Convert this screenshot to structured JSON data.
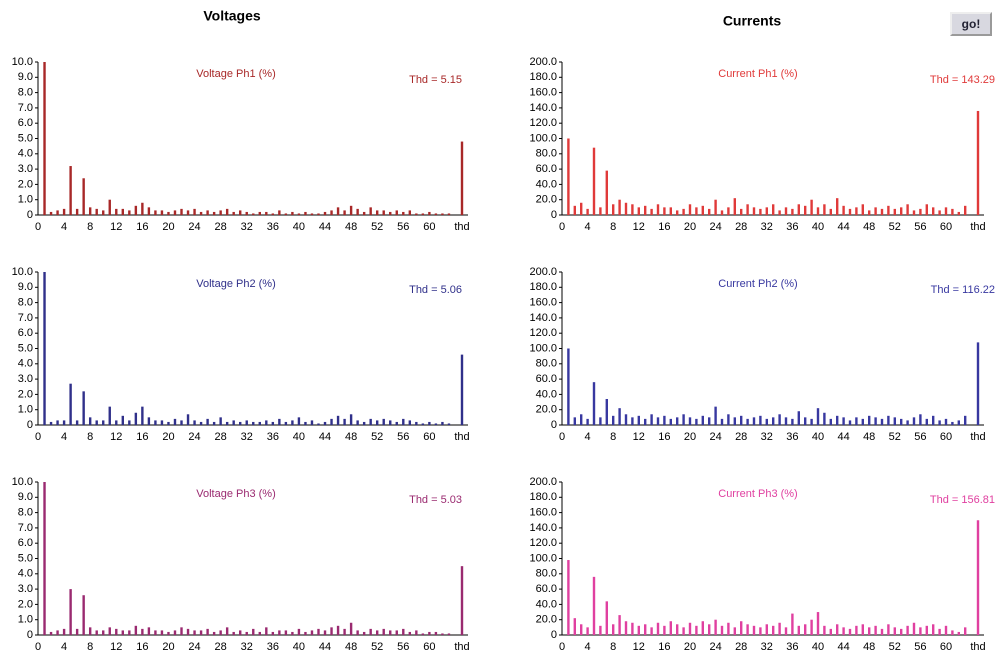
{
  "headings": {
    "voltages": "Voltages",
    "currents": "Currents"
  },
  "button": "go!",
  "chart_data": [
    {
      "type": "bar",
      "title": "Voltage Ph1 (%)",
      "annotation": "Thd = 5.15",
      "color": "#a82828",
      "categories": [
        "0",
        null,
        null,
        null,
        "4",
        null,
        null,
        null,
        "8",
        null,
        null,
        null,
        "12",
        null,
        null,
        null,
        "16",
        null,
        null,
        null,
        "20",
        null,
        null,
        null,
        "24",
        null,
        null,
        null,
        "28",
        null,
        null,
        null,
        "32",
        null,
        null,
        null,
        "36",
        null,
        null,
        null,
        "40",
        null,
        null,
        null,
        "44",
        null,
        null,
        null,
        "48",
        null,
        null,
        null,
        "52",
        null,
        null,
        null,
        "56",
        null,
        null,
        null,
        "60",
        null,
        null,
        null,
        null,
        "thd"
      ],
      "values": [
        null,
        10,
        0.2,
        0.3,
        0.4,
        3.2,
        0.4,
        2.4,
        0.5,
        0.4,
        0.3,
        1,
        0.4,
        0.4,
        0.3,
        0.6,
        0.8,
        0.5,
        0.3,
        0.3,
        0.2,
        0.3,
        0.4,
        0.3,
        0.4,
        0.2,
        0.3,
        0.2,
        0.3,
        0.4,
        0.2,
        0.3,
        0.2,
        0.1,
        0.2,
        0.2,
        0.1,
        0.3,
        0.1,
        0.2,
        0.1,
        0.2,
        0.1,
        0.1,
        0.2,
        0.3,
        0.5,
        0.3,
        0.6,
        0.4,
        0.2,
        0.5,
        0.3,
        0.3,
        0.2,
        0.3,
        0.2,
        0.3,
        0.1,
        0.1,
        0.2,
        0.1,
        0.1,
        0.1,
        null,
        4.8
      ],
      "ylim": [
        0,
        10
      ],
      "yticks": [
        0,
        {
          "value": 1,
          "label": "1.0"
        },
        {
          "value": 2,
          "label": "2.0"
        },
        {
          "value": 3,
          "label": "3.0"
        },
        {
          "value": 4,
          "label": "4.0"
        },
        {
          "value": 5,
          "label": "5.0"
        },
        {
          "value": 6,
          "label": "6.0"
        },
        {
          "value": 7,
          "label": "7.0"
        },
        {
          "value": 8,
          "label": "8.0"
        },
        {
          "value": 9,
          "label": "9.0"
        },
        {
          "value": 10,
          "label": "10.0"
        }
      ]
    },
    {
      "type": "bar",
      "title": "Current Ph1 (%)",
      "annotation": "Thd = 143.29",
      "color": "#e03a3a",
      "categories": [
        "0",
        null,
        null,
        null,
        "4",
        null,
        null,
        null,
        "8",
        null,
        null,
        null,
        "12",
        null,
        null,
        null,
        "16",
        null,
        null,
        null,
        "20",
        null,
        null,
        null,
        "24",
        null,
        null,
        null,
        "28",
        null,
        null,
        null,
        "32",
        null,
        null,
        null,
        "36",
        null,
        null,
        null,
        "40",
        null,
        null,
        null,
        "44",
        null,
        null,
        null,
        "48",
        null,
        null,
        null,
        "52",
        null,
        null,
        null,
        "56",
        null,
        null,
        null,
        "60",
        null,
        null,
        null,
        null,
        "thd"
      ],
      "values": [
        null,
        100,
        12,
        16,
        8,
        88,
        10,
        58,
        14,
        20,
        16,
        14,
        10,
        12,
        8,
        14,
        10,
        10,
        6,
        8,
        14,
        10,
        12,
        8,
        20,
        6,
        10,
        22,
        8,
        14,
        10,
        8,
        10,
        14,
        6,
        10,
        8,
        14,
        12,
        20,
        10,
        14,
        8,
        22,
        12,
        8,
        10,
        14,
        6,
        10,
        8,
        12,
        8,
        10,
        14,
        6,
        8,
        14,
        10,
        6,
        10,
        8,
        4,
        12,
        null,
        136
      ],
      "ylim": [
        0,
        200
      ],
      "yticks": [
        0,
        {
          "value": 20,
          "label": "20.0"
        },
        {
          "value": 40,
          "label": "40.0"
        },
        {
          "value": 60,
          "label": "60.0"
        },
        {
          "value": 80,
          "label": "80.0"
        },
        {
          "value": 100,
          "label": "100.0"
        },
        {
          "value": 120,
          "label": "120.0"
        },
        {
          "value": 140,
          "label": "140.0"
        },
        {
          "value": 160,
          "label": "160.0"
        },
        {
          "value": 180,
          "label": "180.0"
        },
        {
          "value": 200,
          "label": "200.0"
        }
      ]
    },
    {
      "type": "bar",
      "title": "Voltage Ph2 (%)",
      "annotation": "Thd = 5.06",
      "color": "#30308a",
      "categories": [
        "0",
        null,
        null,
        null,
        "4",
        null,
        null,
        null,
        "8",
        null,
        null,
        null,
        "12",
        null,
        null,
        null,
        "16",
        null,
        null,
        null,
        "20",
        null,
        null,
        null,
        "24",
        null,
        null,
        null,
        "28",
        null,
        null,
        null,
        "32",
        null,
        null,
        null,
        "36",
        null,
        null,
        null,
        "40",
        null,
        null,
        null,
        "44",
        null,
        null,
        null,
        "48",
        null,
        null,
        null,
        "52",
        null,
        null,
        null,
        "56",
        null,
        null,
        null,
        "60",
        null,
        null,
        null,
        null,
        "thd"
      ],
      "values": [
        null,
        10,
        0.2,
        0.3,
        0.3,
        2.7,
        0.3,
        2.2,
        0.5,
        0.3,
        0.3,
        1.2,
        0.3,
        0.6,
        0.3,
        0.8,
        1.2,
        0.5,
        0.3,
        0.3,
        0.2,
        0.4,
        0.3,
        0.7,
        0.3,
        0.2,
        0.4,
        0.2,
        0.5,
        0.2,
        0.3,
        0.2,
        0.3,
        0.2,
        0.2,
        0.3,
        0.2,
        0.4,
        0.2,
        0.3,
        0.5,
        0.2,
        0.3,
        0.1,
        0.2,
        0.4,
        0.6,
        0.4,
        0.7,
        0.3,
        0.2,
        0.4,
        0.3,
        0.4,
        0.3,
        0.2,
        0.4,
        0.3,
        0.2,
        0.1,
        0.2,
        0.1,
        0.2,
        0.1,
        null,
        4.6
      ],
      "ylim": [
        0,
        10
      ],
      "yticks": [
        0,
        {
          "value": 1,
          "label": "1.0"
        },
        {
          "value": 2,
          "label": "2.0"
        },
        {
          "value": 3,
          "label": "3.0"
        },
        {
          "value": 4,
          "label": "4.0"
        },
        {
          "value": 5,
          "label": "5.0"
        },
        {
          "value": 6,
          "label": "6.0"
        },
        {
          "value": 7,
          "label": "7.0"
        },
        {
          "value": 8,
          "label": "8.0"
        },
        {
          "value": 9,
          "label": "9.0"
        },
        {
          "value": 10,
          "label": "10.0"
        }
      ]
    },
    {
      "type": "bar",
      "title": "Current Ph2 (%)",
      "annotation": "Thd = 116.22",
      "color": "#3838a0",
      "categories": [
        "0",
        null,
        null,
        null,
        "4",
        null,
        null,
        null,
        "8",
        null,
        null,
        null,
        "12",
        null,
        null,
        null,
        "16",
        null,
        null,
        null,
        "20",
        null,
        null,
        null,
        "24",
        null,
        null,
        null,
        "28",
        null,
        null,
        null,
        "32",
        null,
        null,
        null,
        "36",
        null,
        null,
        null,
        "40",
        null,
        null,
        null,
        "44",
        null,
        null,
        null,
        "48",
        null,
        null,
        null,
        "52",
        null,
        null,
        null,
        "56",
        null,
        null,
        null,
        "60",
        null,
        null,
        null,
        null,
        "thd"
      ],
      "values": [
        null,
        100,
        10,
        14,
        8,
        56,
        10,
        34,
        12,
        22,
        14,
        10,
        12,
        8,
        14,
        10,
        12,
        8,
        10,
        14,
        10,
        8,
        12,
        10,
        24,
        8,
        14,
        10,
        12,
        8,
        10,
        12,
        8,
        10,
        14,
        10,
        8,
        18,
        10,
        8,
        22,
        16,
        8,
        12,
        10,
        6,
        10,
        8,
        12,
        10,
        8,
        12,
        10,
        8,
        6,
        10,
        14,
        8,
        12,
        6,
        8,
        4,
        6,
        12,
        null,
        108
      ],
      "ylim": [
        0,
        200
      ],
      "yticks": [
        0,
        {
          "value": 20,
          "label": "20.0"
        },
        {
          "value": 40,
          "label": "40.0"
        },
        {
          "value": 60,
          "label": "60.0"
        },
        {
          "value": 80,
          "label": "80.0"
        },
        {
          "value": 100,
          "label": "100.0"
        },
        {
          "value": 120,
          "label": "120.0"
        },
        {
          "value": 140,
          "label": "140.0"
        },
        {
          "value": 160,
          "label": "160.0"
        },
        {
          "value": 180,
          "label": "180.0"
        },
        {
          "value": 200,
          "label": "200.0"
        }
      ]
    },
    {
      "type": "bar",
      "title": "Voltage Ph3 (%)",
      "annotation": "Thd = 5.03",
      "color": "#9a2a70",
      "categories": [
        "0",
        null,
        null,
        null,
        "4",
        null,
        null,
        null,
        "8",
        null,
        null,
        null,
        "12",
        null,
        null,
        null,
        "16",
        null,
        null,
        null,
        "20",
        null,
        null,
        null,
        "24",
        null,
        null,
        null,
        "28",
        null,
        null,
        null,
        "32",
        null,
        null,
        null,
        "36",
        null,
        null,
        null,
        "40",
        null,
        null,
        null,
        "44",
        null,
        null,
        null,
        "48",
        null,
        null,
        null,
        "52",
        null,
        null,
        null,
        "56",
        null,
        null,
        null,
        "60",
        null,
        null,
        null,
        null,
        "thd"
      ],
      "values": [
        null,
        10,
        0.2,
        0.3,
        0.4,
        3,
        0.4,
        2.6,
        0.5,
        0.3,
        0.3,
        0.5,
        0.4,
        0.3,
        0.3,
        0.6,
        0.4,
        0.5,
        0.3,
        0.3,
        0.2,
        0.3,
        0.5,
        0.4,
        0.3,
        0.3,
        0.4,
        0.2,
        0.3,
        0.5,
        0.2,
        0.3,
        0.2,
        0.4,
        0.2,
        0.5,
        0.2,
        0.3,
        0.3,
        0.2,
        0.4,
        0.2,
        0.3,
        0.4,
        0.3,
        0.5,
        0.6,
        0.4,
        0.8,
        0.3,
        0.2,
        0.4,
        0.3,
        0.4,
        0.3,
        0.3,
        0.4,
        0.2,
        0.3,
        0.1,
        0.2,
        0.2,
        0.1,
        0.1,
        null,
        4.5
      ],
      "ylim": [
        0,
        10
      ],
      "yticks": [
        0,
        {
          "value": 1,
          "label": "1.0"
        },
        {
          "value": 2,
          "label": "2.0"
        },
        {
          "value": 3,
          "label": "3.0"
        },
        {
          "value": 4,
          "label": "4.0"
        },
        {
          "value": 5,
          "label": "5.0"
        },
        {
          "value": 6,
          "label": "6.0"
        },
        {
          "value": 7,
          "label": "7.0"
        },
        {
          "value": 8,
          "label": "8.0"
        },
        {
          "value": 9,
          "label": "9.0"
        },
        {
          "value": 10,
          "label": "10.0"
        }
      ]
    },
    {
      "type": "bar",
      "title": "Current Ph3 (%)",
      "annotation": "Thd = 156.81",
      "color": "#e040a0",
      "categories": [
        "0",
        null,
        null,
        null,
        "4",
        null,
        null,
        null,
        "8",
        null,
        null,
        null,
        "12",
        null,
        null,
        null,
        "16",
        null,
        null,
        null,
        "20",
        null,
        null,
        null,
        "24",
        null,
        null,
        null,
        "28",
        null,
        null,
        null,
        "32",
        null,
        null,
        null,
        "36",
        null,
        null,
        null,
        "40",
        null,
        null,
        null,
        "44",
        null,
        null,
        null,
        "48",
        null,
        null,
        null,
        "52",
        null,
        null,
        null,
        "56",
        null,
        null,
        null,
        "60",
        null,
        null,
        null,
        null,
        "thd"
      ],
      "values": [
        null,
        98,
        22,
        14,
        10,
        76,
        12,
        44,
        14,
        26,
        18,
        16,
        12,
        14,
        10,
        16,
        12,
        18,
        14,
        10,
        16,
        12,
        18,
        14,
        20,
        12,
        16,
        10,
        18,
        14,
        12,
        10,
        14,
        12,
        16,
        10,
        28,
        12,
        14,
        20,
        30,
        12,
        8,
        14,
        10,
        8,
        12,
        14,
        10,
        12,
        8,
        14,
        10,
        8,
        12,
        16,
        10,
        12,
        14,
        8,
        12,
        6,
        4,
        10,
        null,
        150
      ],
      "ylim": [
        0,
        200
      ],
      "yticks": [
        0,
        {
          "value": 20,
          "label": "20.0"
        },
        {
          "value": 40,
          "label": "40.0"
        },
        {
          "value": 60,
          "label": "60.0"
        },
        {
          "value": 80,
          "label": "80.0"
        },
        {
          "value": 100,
          "label": "100.0"
        },
        {
          "value": 120,
          "label": "120.0"
        },
        {
          "value": 140,
          "label": "140.0"
        },
        {
          "value": 160,
          "label": "160.0"
        },
        {
          "value": 180,
          "label": "180.0"
        },
        {
          "value": 200,
          "label": "200.0"
        }
      ]
    }
  ]
}
